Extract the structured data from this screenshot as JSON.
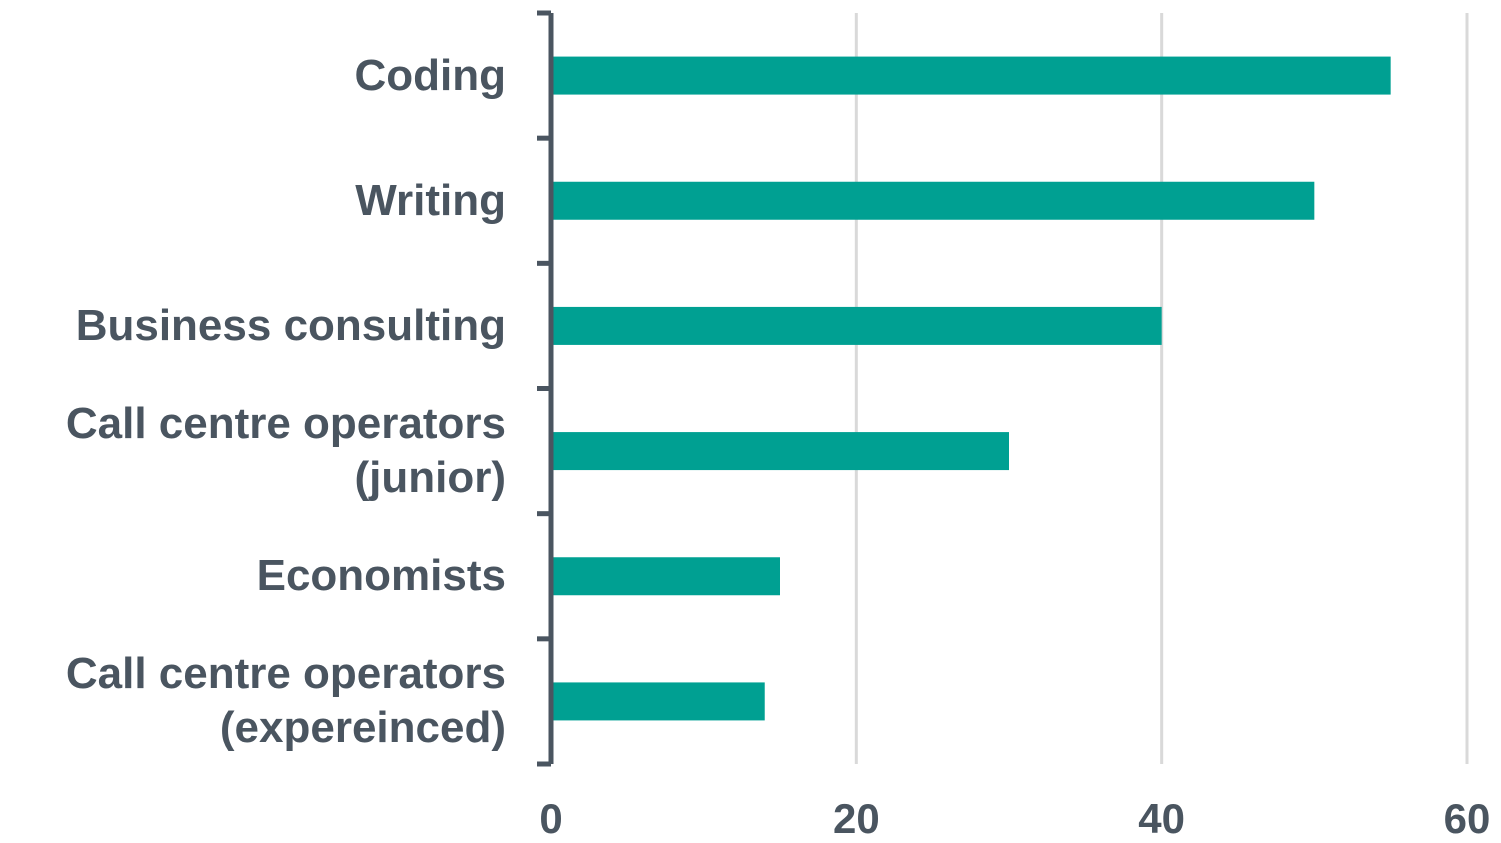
{
  "chart_data": {
    "type": "bar",
    "orientation": "horizontal",
    "categories": [
      "Coding",
      "Writing",
      "Business consulting",
      "Call centre operators (junior)",
      "Economists",
      "Call centre operators (expereinced)"
    ],
    "values": [
      55,
      50,
      40,
      30,
      15,
      14
    ],
    "color": "#00a092",
    "xlim": [
      0,
      60
    ],
    "xticks": [
      0,
      20,
      40,
      60
    ],
    "grid": true
  }
}
